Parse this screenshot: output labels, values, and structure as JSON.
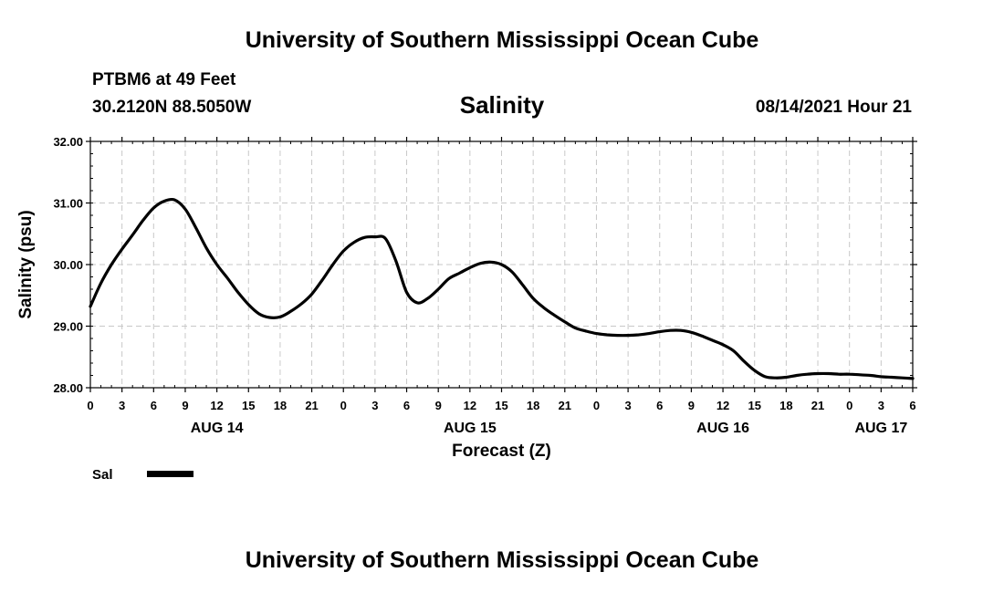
{
  "header": {
    "top_title": "University of Southern Mississippi Ocean Cube",
    "station": "PTBM6 at 49 Feet",
    "coords": "30.2120N  88.5050W",
    "timestamp": "08/14/2021 Hour 21",
    "bottom_title": "University of Southern Mississippi Ocean Cube"
  },
  "colors": {
    "line": "#000000",
    "grid": "#c8c8c8",
    "axis": "#000000"
  },
  "chart_data": {
    "type": "line",
    "title": "Salinity",
    "xlabel": "Forecast (Z)",
    "ylabel": "Salinity (psu)",
    "ylim": [
      28.0,
      32.0
    ],
    "xlim": [
      0,
      78
    ],
    "x_unit": "hours since AUG 14 00Z",
    "yticks": [
      "28.00",
      "29.00",
      "30.00",
      "31.00",
      "32.00"
    ],
    "xtick_labels": [
      "0",
      "3",
      "6",
      "9",
      "12",
      "15",
      "18",
      "21",
      "0",
      "3",
      "6",
      "9",
      "12",
      "15",
      "18",
      "21",
      "0",
      "3",
      "6",
      "9",
      "12",
      "15",
      "18",
      "21",
      "0",
      "3",
      "6"
    ],
    "day_labels": [
      {
        "label": "AUG 14",
        "x": 12
      },
      {
        "label": "AUG 15",
        "x": 36
      },
      {
        "label": "AUG 16",
        "x": 60
      },
      {
        "label": "AUG 17",
        "x": 75
      }
    ],
    "grid": true,
    "legend_position": "bottom-left",
    "series": [
      {
        "name": "Sal",
        "x": [
          0,
          1,
          2,
          3,
          4,
          5,
          6,
          7,
          8,
          9,
          10,
          11,
          12,
          13,
          14,
          15,
          16,
          17,
          18,
          19,
          20,
          21,
          22,
          23,
          24,
          25,
          26,
          27,
          28,
          29,
          30,
          31,
          32,
          33,
          34,
          35,
          36,
          37,
          38,
          39,
          40,
          41,
          42,
          43,
          44,
          45,
          46,
          47,
          48,
          49,
          50,
          51,
          52,
          53,
          54,
          55,
          56,
          57,
          58,
          59,
          60,
          61,
          62,
          63,
          64,
          65,
          66,
          67,
          68,
          69,
          70,
          71,
          72,
          73,
          74,
          75,
          76,
          77,
          78
        ],
        "values": [
          29.32,
          29.7,
          30.0,
          30.25,
          30.48,
          30.72,
          30.92,
          31.03,
          31.05,
          30.9,
          30.6,
          30.27,
          30.0,
          29.78,
          29.55,
          29.35,
          29.2,
          29.14,
          29.15,
          29.24,
          29.36,
          29.52,
          29.75,
          30.0,
          30.22,
          30.36,
          30.44,
          30.45,
          30.42,
          30.05,
          29.55,
          29.38,
          29.45,
          29.6,
          29.77,
          29.86,
          29.95,
          30.02,
          30.04,
          30.0,
          29.88,
          29.67,
          29.45,
          29.3,
          29.18,
          29.07,
          28.97,
          28.92,
          28.88,
          28.86,
          28.85,
          28.85,
          28.86,
          28.88,
          28.91,
          28.93,
          28.93,
          28.9,
          28.84,
          28.77,
          28.7,
          28.6,
          28.43,
          28.28,
          28.18,
          28.16,
          28.17,
          28.2,
          28.22,
          28.23,
          28.23,
          28.22,
          28.22,
          28.21,
          28.2,
          28.18,
          28.17,
          28.16,
          28.15
        ]
      }
    ]
  }
}
